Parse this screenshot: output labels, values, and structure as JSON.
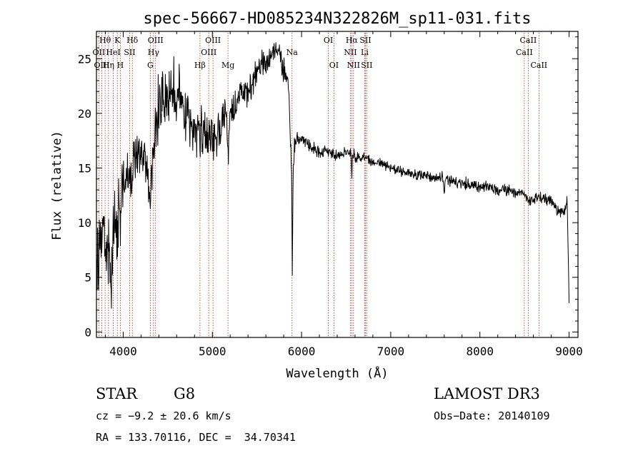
{
  "chart_data": {
    "type": "line",
    "title": "spec-56667-HD085234N322826M_sp11-031.fits",
    "xlabel": "Wavelength (Å)",
    "ylabel": "Flux (relative)",
    "xlim": [
      3700,
      9100
    ],
    "ylim": [
      -0.5,
      27.5
    ],
    "x_ticks": [
      4000,
      5000,
      6000,
      7000,
      8000,
      9000
    ],
    "y_ticks": [
      0,
      5,
      10,
      15,
      20,
      25
    ],
    "grid": false,
    "colors": {
      "spectrum": "#000000",
      "lines": "#b22222"
    },
    "series": [
      {
        "name": "spectrum",
        "anchors_x": [
          3700,
          3740,
          3780,
          3800,
          3830,
          3860,
          3890,
          3920,
          3950,
          3980,
          4000,
          4050,
          4100,
          4150,
          4200,
          4250,
          4300,
          4340,
          4380,
          4420,
          4460,
          4500,
          4550,
          4600,
          4650,
          4700,
          4750,
          4800,
          4860,
          4900,
          4950,
          5000,
          5050,
          5100,
          5150,
          5200,
          5250,
          5300,
          5350,
          5400,
          5450,
          5500,
          5550,
          5600,
          5650,
          5700,
          5750,
          5780,
          5800,
          5850,
          5870,
          5890,
          5895,
          5905,
          5920,
          5950,
          6000,
          6100,
          6200,
          6300,
          6400,
          6500,
          6560,
          6600,
          6700,
          6800,
          6900,
          7000,
          7200,
          7400,
          7600,
          7800,
          8000,
          8200,
          8400,
          8500,
          8550,
          8600,
          8700,
          8800,
          8850,
          8900,
          8950,
          8980,
          9000
        ],
        "anchors_y": [
          6,
          9,
          10,
          7,
          8,
          4,
          9,
          11,
          12,
          13,
          13.5,
          14,
          15.5,
          16,
          16.5,
          15.5,
          14,
          16,
          20,
          21.5,
          20.5,
          21.5,
          22,
          21,
          21.5,
          20.5,
          19,
          18.5,
          19.5,
          19,
          18,
          17.5,
          18.5,
          19,
          19.5,
          20,
          20.5,
          21.5,
          22,
          22,
          23,
          24,
          24.5,
          24.5,
          25,
          25.5,
          26,
          24,
          24,
          23,
          19,
          14,
          4,
          14,
          17,
          18,
          17.5,
          17,
          16.5,
          16.5,
          16,
          16.5,
          16.5,
          16,
          16,
          15.5,
          15.5,
          15,
          14.5,
          14.3,
          14,
          13.6,
          13.3,
          13,
          12.8,
          12.6,
          12,
          12.3,
          12.2,
          12,
          11.5,
          11,
          11,
          12,
          2.5
        ],
        "noise_x": [
          3700,
          3900,
          4000,
          4200,
          4300,
          4400,
          4900,
          5100,
          5400,
          5900,
          6000,
          6500,
          7000,
          9000
        ],
        "noise_y": [
          2.8,
          2.6,
          2.2,
          1.8,
          1.6,
          2.6,
          2.2,
          1.6,
          1.1,
          0.9,
          0.5,
          0.45,
          0.4,
          0.45
        ],
        "dips": [
          {
            "x": 3934,
            "depth": 4,
            "width": 8
          },
          {
            "x": 3968,
            "depth": 3.5,
            "width": 8
          },
          {
            "x": 4102,
            "depth": 2,
            "width": 6
          },
          {
            "x": 4300,
            "depth": 3,
            "width": 10
          },
          {
            "x": 4861,
            "depth": 2,
            "width": 5
          },
          {
            "x": 5175,
            "depth": 3.5,
            "width": 12
          },
          {
            "x": 6563,
            "depth": 2.5,
            "width": 5
          },
          {
            "x": 7600,
            "depth": 1,
            "width": 8
          }
        ],
        "seed": 20140109
      }
    ],
    "spectral_lines": [
      {
        "label": "Hθ",
        "x": 3797,
        "row": 0
      },
      {
        "label": "OII",
        "x": 3727,
        "row": 1
      },
      {
        "label": "OIII",
        "x": 3760,
        "row": 2
      },
      {
        "label": "K",
        "x": 3934,
        "row": 0
      },
      {
        "label": "HeI",
        "x": 3889,
        "row": 1
      },
      {
        "label": "Hη",
        "x": 3835,
        "row": 2
      },
      {
        "label": "SII",
        "x": 4072,
        "row": 1
      },
      {
        "label": "H",
        "x": 3968,
        "row": 2
      },
      {
        "label": "Hδ",
        "x": 4102,
        "row": 0
      },
      {
        "label": "OIII",
        "x": 4363,
        "row": 0
      },
      {
        "label": "Hγ",
        "x": 4340,
        "row": 1
      },
      {
        "label": "G",
        "x": 4304,
        "row": 2
      },
      {
        "label": "Hβ",
        "x": 4861,
        "row": 2
      },
      {
        "label": "OIII",
        "x": 5007,
        "row": 0
      },
      {
        "label": "OIII",
        "x": 4959,
        "row": 1
      },
      {
        "label": "Mg",
        "x": 5175,
        "row": 2
      },
      {
        "label": "Na",
        "x": 5893,
        "row": 1
      },
      {
        "label": "OI",
        "x": 6300,
        "row": 0
      },
      {
        "label": "OI",
        "x": 6363,
        "row": 2
      },
      {
        "label": "Hα",
        "x": 6563,
        "row": 0
      },
      {
        "label": "NII",
        "x": 6548,
        "row": 1
      },
      {
        "label": "NII",
        "x": 6583,
        "row": 2
      },
      {
        "label": "SII",
        "x": 6716,
        "row": 0
      },
      {
        "label": "Li",
        "x": 6708,
        "row": 1
      },
      {
        "label": "SII",
        "x": 6731,
        "row": 2
      },
      {
        "label": "CaII",
        "x": 8542,
        "row": 0
      },
      {
        "label": "CaII",
        "x": 8498,
        "row": 1
      },
      {
        "label": "CaII",
        "x": 8662,
        "row": 2
      }
    ]
  },
  "info": {
    "class": "STAR",
    "subclass": "G8",
    "survey": "LAMOST DR3",
    "cz": "cz = −9.2 ± 20.6 km/s",
    "obs_date": "Obs−Date: 20140109",
    "coords": "RA = 133.70116, DEC =  34.70341"
  }
}
